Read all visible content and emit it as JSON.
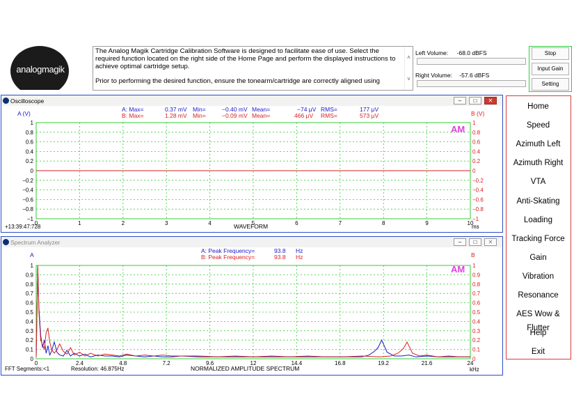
{
  "logo": {
    "text": "analogmagik"
  },
  "description": {
    "para1": "The Analog Magik Cartridge Calibration Software is designed to facilitate ease of use.   Select the required function located on the right side of the Home Page and perform the displayed instructions to achieve optimal cartridge setup.",
    "para2": "Prior to performing the desired function, ensure the tonearm/cartridge are correctly aligned using",
    "scroll_up": "˄",
    "scroll_down": "˅"
  },
  "volume": {
    "left_label": "Left Volume:",
    "left_value": "-68.0 dBFS",
    "right_label": "Right Volume:",
    "right_value": "-57.6 dBFS"
  },
  "buttons": {
    "stop": "Stop",
    "input_gain": "Input Gain",
    "setting": "Setting"
  },
  "window_buttons": {
    "minimize": "–",
    "maximize": "□",
    "close": "✕"
  },
  "oscilloscope": {
    "title": "Oscilloscope",
    "a_label": "A (V)",
    "b_label": "B (V)",
    "stats": {
      "a_max_label": "A: Max=",
      "a_max": "0.37 mV",
      "a_min_label": "Min=",
      "a_min": "−0.40 mV",
      "a_mean_label": "Mean=",
      "a_mean": "−74  μV",
      "a_rms_label": "RMS=",
      "a_rms": "177  μV",
      "b_max_label": "B: Max=",
      "b_max": "1.28 mV",
      "b_min_label": "Min=",
      "b_min": "−0.09 mV",
      "b_mean_label": "Mean=",
      "b_mean": "466  μV",
      "b_rms_label": "RMS=",
      "b_rms": "573  μV"
    },
    "y_ticks_left": [
      "1",
      "0.8",
      "0.6",
      "0.4",
      "0.2",
      "0",
      "−0.2",
      "−0.4",
      "−0.6",
      "−0.8",
      "−1"
    ],
    "y_ticks_right": [
      "1",
      "0.8",
      "0.6",
      "0.4",
      "0.2",
      "0",
      "−0.2",
      "−0.4",
      "−0.6",
      "−0.8",
      "−1"
    ],
    "x_ticks": [
      "0",
      "1",
      "2",
      "3",
      "4",
      "5",
      "6",
      "7",
      "8",
      "9",
      "10"
    ],
    "x_unit": "ms",
    "xlabel": "WAVEFORM",
    "timestamp": "+13:39:47:728",
    "watermark": "AM"
  },
  "spectrum": {
    "title": "Spectrum Analyzer",
    "a_label": "A",
    "b_label": "B",
    "stats": {
      "a_label": "A: Peak Frequency=",
      "a_value": "93.8",
      "a_unit": "Hz",
      "b_label": "B: Peak Frequency=",
      "b_value": "93.8",
      "b_unit": "Hz"
    },
    "y_ticks_left": [
      "1",
      "0.9",
      "0.8",
      "0.7",
      "0.6",
      "0.5",
      "0.4",
      "0.3",
      "0.2",
      "0.1",
      "0"
    ],
    "y_ticks_right": [
      "1",
      "0.9",
      "0.8",
      "0.7",
      "0.6",
      "0.5",
      "0.4",
      "0.3",
      "0.2",
      "0.1",
      "0"
    ],
    "x_ticks": [
      "0",
      "2.4",
      "4.8",
      "7.2",
      "9.6",
      "12",
      "14.4",
      "16.8",
      "19.2",
      "21.6",
      "24"
    ],
    "x_unit": "kHz",
    "xlabel": "NORMALIZED AMPLITUDE SPECTRUM",
    "fft_segments": "FFT Segments:<1",
    "resolution": "Resolution: 46.875Hz",
    "watermark": "AM"
  },
  "nav": [
    "Home",
    "Speed",
    "Azimuth Left",
    "Azimuth Right",
    "VTA",
    "Anti-Skating",
    "Loading",
    "Tracking Force",
    "Gain",
    "Vibration",
    "Resonance",
    "AES Wow & Flutter",
    "Help",
    "Exit"
  ],
  "colors": {
    "channel_a": "#1a1acc",
    "channel_b": "#d92020",
    "grid": "#33cc33",
    "frame": "#2a4cc7",
    "nav_border": "#d93a3a",
    "watermark": "#e040e0"
  },
  "chart_data": [
    {
      "type": "line",
      "title": "",
      "xlabel": "WAVEFORM",
      "ylabel": "A (V)",
      "xlim": [
        0,
        10
      ],
      "ylim": [
        -1,
        1
      ],
      "grid": true,
      "series": [
        {
          "name": "A",
          "color": "#1a1acc",
          "x": [
            0,
            10
          ],
          "values": [
            0,
            0
          ]
        },
        {
          "name": "B",
          "color": "#d92020",
          "x": [
            0,
            10
          ],
          "values": [
            0,
            0
          ]
        }
      ]
    },
    {
      "type": "line",
      "title": "",
      "xlabel": "NORMALIZED AMPLITUDE SPECTRUM",
      "ylabel": "A",
      "xlim": [
        0,
        24
      ],
      "ylim": [
        0,
        1
      ],
      "grid": true,
      "series": [
        {
          "name": "A",
          "color": "#1a1acc",
          "x": [
            0,
            0.09,
            0.15,
            0.25,
            0.35,
            0.45,
            0.55,
            0.65,
            0.75,
            0.85,
            1.0,
            1.15,
            1.3,
            1.5,
            1.7,
            1.9,
            2.1,
            2.4,
            2.7,
            3.0,
            3.4,
            3.8,
            4.2,
            4.6,
            5.0,
            5.5,
            6.0,
            6.5,
            7.0,
            7.5,
            8.0,
            9.0,
            10.0,
            11.0,
            12.0,
            13.0,
            14.0,
            15.0,
            16.0,
            17.0,
            18.0,
            18.4,
            18.7,
            18.9,
            19.1,
            19.4,
            19.8,
            20.2,
            20.6,
            21.0,
            21.6,
            22.2,
            22.8,
            23.4,
            24
          ],
          "values": [
            0.02,
            0.98,
            0.55,
            0.25,
            0.12,
            0.2,
            0.06,
            0.14,
            0.04,
            0.08,
            0.18,
            0.07,
            0.04,
            0.03,
            0.09,
            0.03,
            0.06,
            0.03,
            0.05,
            0.02,
            0.04,
            0.03,
            0.03,
            0.02,
            0.04,
            0.03,
            0.02,
            0.03,
            0.02,
            0.02,
            0.03,
            0.02,
            0.02,
            0.02,
            0.02,
            0.02,
            0.02,
            0.02,
            0.02,
            0.02,
            0.02,
            0.04,
            0.08,
            0.12,
            0.2,
            0.07,
            0.03,
            0.03,
            0.04,
            0.02,
            0.03,
            0.02,
            0.02,
            0.02,
            0.02
          ]
        },
        {
          "name": "B",
          "color": "#d92020",
          "x": [
            0,
            0.09,
            0.15,
            0.25,
            0.35,
            0.45,
            0.55,
            0.65,
            0.75,
            0.85,
            1.0,
            1.15,
            1.3,
            1.5,
            1.7,
            1.9,
            2.1,
            2.4,
            2.7,
            3.0,
            3.4,
            3.8,
            4.2,
            4.6,
            5.0,
            5.5,
            6.0,
            6.5,
            7.0,
            7.5,
            8.0,
            9.0,
            10.0,
            11.0,
            12.0,
            13.0,
            14.0,
            15.0,
            16.0,
            17.0,
            18.0,
            19.0,
            19.6,
            20.0,
            20.3,
            20.5,
            20.8,
            21.2,
            21.6,
            22.2,
            22.8,
            23.4,
            24
          ],
          "values": [
            0.02,
            1.0,
            0.5,
            0.2,
            0.15,
            0.1,
            0.28,
            0.33,
            0.18,
            0.1,
            0.06,
            0.1,
            0.16,
            0.08,
            0.05,
            0.12,
            0.04,
            0.07,
            0.03,
            0.06,
            0.03,
            0.05,
            0.04,
            0.03,
            0.05,
            0.03,
            0.04,
            0.03,
            0.04,
            0.03,
            0.03,
            0.03,
            0.02,
            0.03,
            0.02,
            0.03,
            0.02,
            0.03,
            0.02,
            0.02,
            0.03,
            0.02,
            0.03,
            0.06,
            0.11,
            0.18,
            0.06,
            0.03,
            0.04,
            0.02,
            0.03,
            0.02,
            0.02
          ]
        }
      ]
    }
  ]
}
